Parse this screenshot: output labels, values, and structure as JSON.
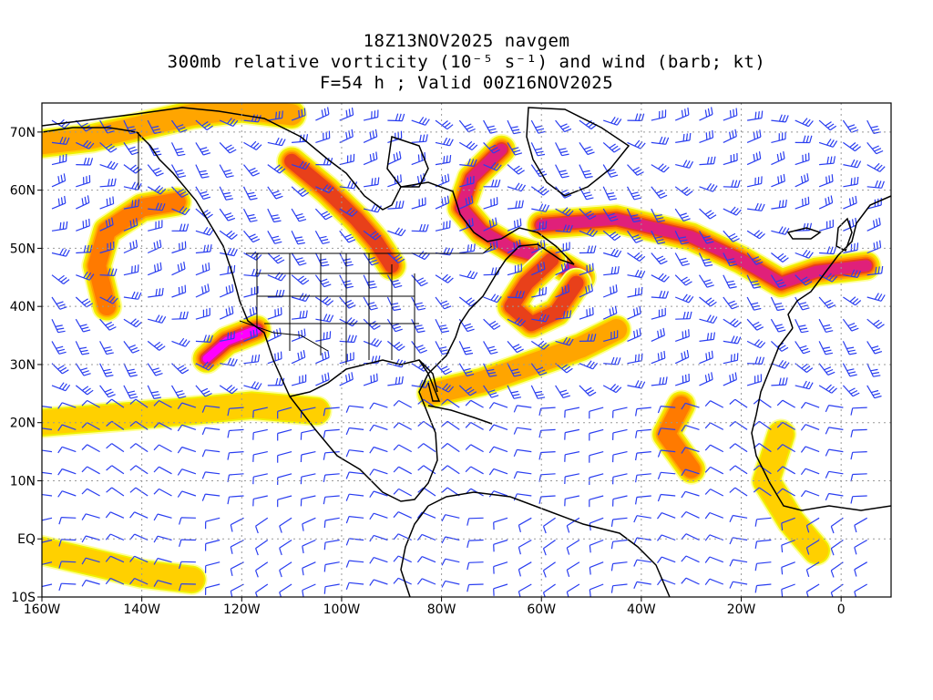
{
  "title": {
    "line1": "18Z13NOV2025 navgem",
    "line2": "300mb relative vorticity (10⁻⁵ s⁻¹) and wind (barb; kt)",
    "line3": "F=54 h ; Valid 00Z16NOV2025"
  },
  "map": {
    "lon_range": [
      -160,
      10
    ],
    "lat_range": [
      -10,
      75
    ],
    "lat_ticks": [
      {
        "value": 70,
        "label": "70N"
      },
      {
        "value": 60,
        "label": "60N"
      },
      {
        "value": 50,
        "label": "50N"
      },
      {
        "value": 40,
        "label": "40N"
      },
      {
        "value": 30,
        "label": "30N"
      },
      {
        "value": 20,
        "label": "20N"
      },
      {
        "value": 10,
        "label": "10N"
      },
      {
        "value": 0,
        "label": "EQ"
      },
      {
        "value": -10,
        "label": "10S"
      }
    ],
    "lon_ticks": [
      {
        "value": -160,
        "label": "160W"
      },
      {
        "value": -140,
        "label": "140W"
      },
      {
        "value": -120,
        "label": "120W"
      },
      {
        "value": -100,
        "label": "100W"
      },
      {
        "value": -80,
        "label": "80W"
      },
      {
        "value": -60,
        "label": "60W"
      },
      {
        "value": -40,
        "label": "40W"
      },
      {
        "value": -20,
        "label": "20W"
      },
      {
        "value": 0,
        "label": "0"
      }
    ],
    "colors": {
      "shade_levels": [
        "#fffe9a",
        "#f0f000",
        "#ffd000",
        "#ffa500",
        "#ff7a00",
        "#e8401a",
        "#e0207a",
        "#ff00ff"
      ],
      "barb": "#2a3ef0",
      "coast": "#000000",
      "grid": "#999999"
    },
    "vorticity_features": [
      {
        "name": "bc-offshore-band",
        "points": [
          [
            -147,
            40
          ],
          [
            -149,
            47
          ],
          [
            -147,
            53
          ],
          [
            -140,
            57
          ],
          [
            -133,
            58
          ]
        ],
        "level": 4
      },
      {
        "name": "alaska-arctic-band",
        "points": [
          [
            -160,
            68
          ],
          [
            -150,
            69
          ],
          [
            -140,
            71
          ],
          [
            -130,
            73
          ],
          [
            -120,
            74
          ],
          [
            -110,
            73
          ]
        ],
        "level": 3
      },
      {
        "name": "canada-trough",
        "points": [
          [
            -110,
            65
          ],
          [
            -103,
            60
          ],
          [
            -97,
            55
          ],
          [
            -93,
            51
          ],
          [
            -90,
            47
          ]
        ],
        "level": 5
      },
      {
        "name": "greenland-labrador",
        "points": [
          [
            -68,
            67
          ],
          [
            -74,
            62
          ],
          [
            -76,
            57
          ],
          [
            -72,
            53
          ],
          [
            -66,
            50
          ],
          [
            -58,
            48
          ],
          [
            -52,
            45
          ]
        ],
        "level": 6
      },
      {
        "name": "atlantic-loop",
        "points": [
          [
            -58,
            48
          ],
          [
            -63,
            44
          ],
          [
            -66,
            40
          ],
          [
            -62,
            37
          ],
          [
            -57,
            39
          ],
          [
            -53,
            44
          ]
        ],
        "level": 5
      },
      {
        "name": "north-atlantic-band",
        "points": [
          [
            -60,
            54
          ],
          [
            -45,
            55
          ],
          [
            -30,
            52
          ],
          [
            -20,
            48
          ],
          [
            -12,
            44
          ],
          [
            -5,
            46
          ],
          [
            5,
            47
          ]
        ],
        "level": 6
      },
      {
        "name": "southwest-us-low",
        "points": [
          [
            -127,
            31
          ],
          [
            -123,
            34
          ],
          [
            -117,
            36
          ]
        ],
        "level": 7
      },
      {
        "name": "subtropical-jet",
        "points": [
          [
            -160,
            20
          ],
          [
            -145,
            21
          ],
          [
            -130,
            22
          ],
          [
            -118,
            23
          ],
          [
            -105,
            22
          ]
        ],
        "level": 2
      },
      {
        "name": "caribbean-band",
        "points": [
          [
            -82,
            25
          ],
          [
            -72,
            27
          ],
          [
            -62,
            30
          ],
          [
            -52,
            33
          ],
          [
            -45,
            36
          ]
        ],
        "level": 3
      },
      {
        "name": "eastern-atlantic",
        "points": [
          [
            -32,
            23
          ],
          [
            -35,
            18
          ],
          [
            -30,
            12
          ]
        ],
        "level": 4
      },
      {
        "name": "equatorial-pacific",
        "points": [
          [
            -160,
            -2
          ],
          [
            -150,
            -4
          ],
          [
            -140,
            -6
          ],
          [
            -130,
            -7
          ]
        ],
        "level": 2
      },
      {
        "name": "west-africa",
        "points": [
          [
            -12,
            18
          ],
          [
            -15,
            10
          ],
          [
            -10,
            3
          ],
          [
            -5,
            -2
          ]
        ],
        "level": 2
      }
    ]
  }
}
